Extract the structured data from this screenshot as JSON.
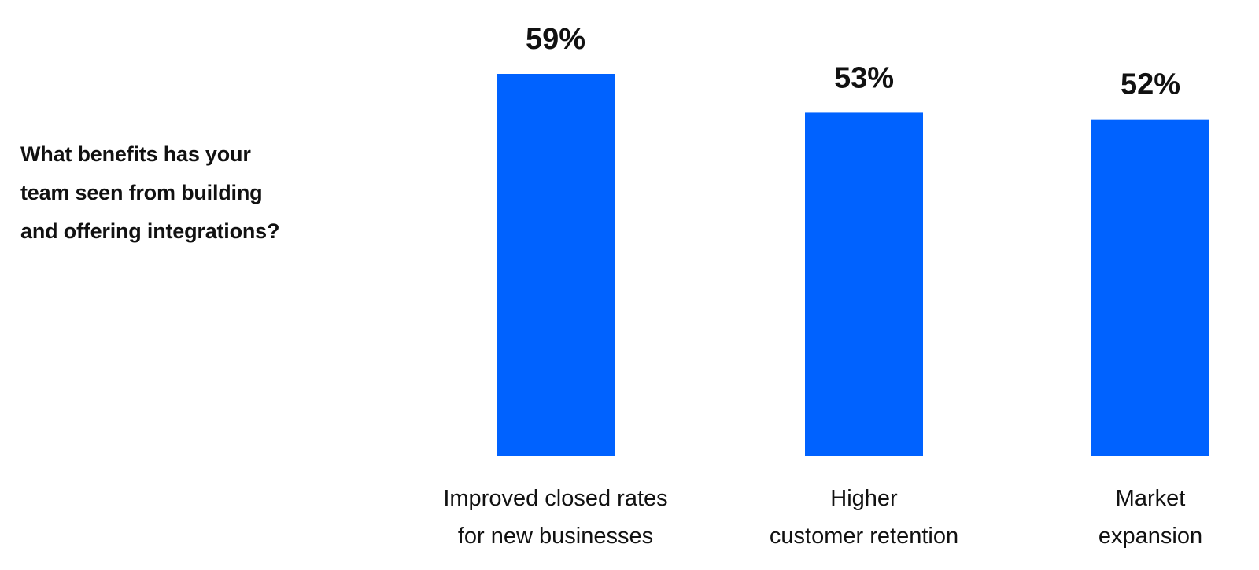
{
  "question": {
    "lines": [
      "What benefits has your",
      "team seen from building",
      "and offering integrations?"
    ]
  },
  "colors": {
    "bar": "#0062FF",
    "text": "#111111",
    "background": "#FFFFFF"
  },
  "chart_data": {
    "type": "bar",
    "categories": [
      [
        "Improved closed rates",
        "for new businesses"
      ],
      [
        "Higher",
        "customer retention"
      ],
      [
        "Market",
        "expansion"
      ]
    ],
    "values": [
      59,
      53,
      52
    ],
    "value_labels": [
      "59%",
      "53%",
      "52%"
    ],
    "ylim": [
      0,
      59
    ],
    "grid": false,
    "legend": "none"
  }
}
